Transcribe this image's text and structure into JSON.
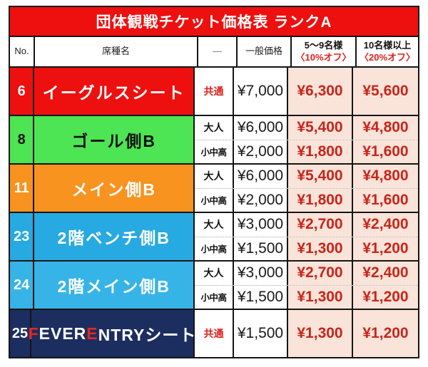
{
  "title": "団体観戦チケット価格表 ランクA",
  "colors": {
    "title_red": "#ee0f0f",
    "row_red": "#ee0f0f",
    "row_green": "#4de553",
    "row_orange": "#f7931e",
    "row_blue": "#27a9e1",
    "row_light_blue": "#36b4e7",
    "row_navy": "#1c2e5f",
    "discount_bg": "#fae4da",
    "discount_text": "#c9241b",
    "accent_red_text": "#df201a",
    "border_black": "#151515"
  },
  "header": {
    "no": "No.",
    "seat": "席種名",
    "cat": "—",
    "general": "一般価格",
    "d10_line1": "5～9名様",
    "d10_line2": "〈10%オフ〉",
    "d20_line1": "10名様以上",
    "d20_line2": "〈20%オフ〉"
  },
  "rows": [
    {
      "no": "6",
      "seat": "イーグルスシート",
      "bg": "#ee0f0f",
      "fg": "#ffffff",
      "subs": [
        {
          "cat": "共通",
          "general": "¥7,000",
          "d10": "¥6,300",
          "d20": "¥5,600"
        }
      ]
    },
    {
      "no": "8",
      "seat": "ゴール側B",
      "bg": "#4de553",
      "fg": "#111111",
      "subs": [
        {
          "cat": "大人",
          "general": "¥6,000",
          "d10": "¥5,400",
          "d20": "¥4,800"
        },
        {
          "cat": "小中高",
          "general": "¥2,000",
          "d10": "¥1,800",
          "d20": "¥1,600"
        }
      ]
    },
    {
      "no": "11",
      "seat": "メイン側B",
      "bg": "#f7931e",
      "fg": "#ffffff",
      "subs": [
        {
          "cat": "大人",
          "general": "¥6,000",
          "d10": "¥5,400",
          "d20": "¥4,800"
        },
        {
          "cat": "小中高",
          "general": "¥2,000",
          "d10": "¥1,800",
          "d20": "¥1,600"
        }
      ]
    },
    {
      "no": "23",
      "seat": "2階ベンチ側B",
      "bg": "#27a9e1",
      "fg": "#ffffff",
      "subs": [
        {
          "cat": "大人",
          "general": "¥3,000",
          "d10": "¥2,700",
          "d20": "¥2,400"
        },
        {
          "cat": "小中高",
          "general": "¥1,500",
          "d10": "¥1,300",
          "d20": "¥1,200"
        }
      ]
    },
    {
      "no": "24",
      "seat": "2階メイン側B",
      "bg": "#36b4e7",
      "fg": "#ffffff",
      "subs": [
        {
          "cat": "大人",
          "general": "¥3,000",
          "d10": "¥2,700",
          "d20": "¥2,400"
        },
        {
          "cat": "小中高",
          "general": "¥1,500",
          "d10": "¥1,300",
          "d20": "¥1,200"
        }
      ]
    },
    {
      "no": "25",
      "seat": "FEVER ENTRYシート",
      "bg": "#1c2e5f",
      "fg": "#ffffff",
      "seat_f1": "F",
      "seat_r1": "EVER ",
      "seat_f2": "E",
      "seat_r2": "NTRYシート",
      "subs": [
        {
          "cat": "共通",
          "general": "¥1,500",
          "d10": "¥1,300",
          "d20": "¥1,200"
        }
      ]
    }
  ]
}
